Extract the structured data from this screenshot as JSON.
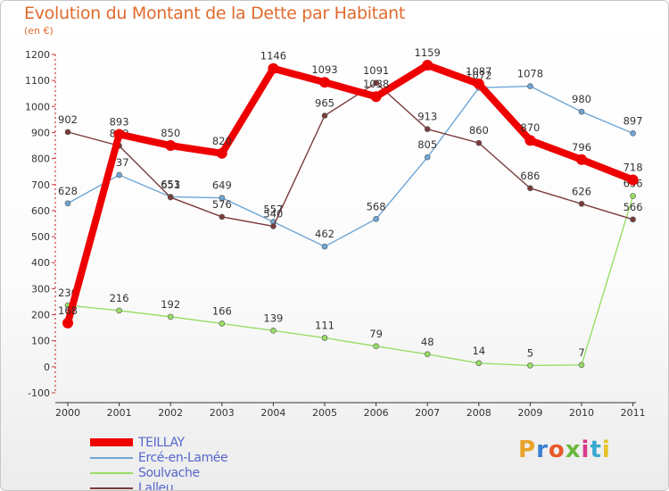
{
  "title": "Evolution du Montant de la Dette par Habitant",
  "subtitle": "(en €)",
  "logo": {
    "text": "Proxiti",
    "colors": [
      "#e8a32a",
      "#3a7fd0",
      "#e85a2a",
      "#6ab83a",
      "#d83a8a",
      "#3aa8d0",
      "#e8c22a"
    ]
  },
  "chart_data": {
    "type": "line",
    "title": "Evolution du Montant de la Dette par Habitant",
    "ylabel": "(en €)",
    "xlabel": "",
    "x": [
      "2000",
      "2001",
      "2002",
      "2003",
      "2004",
      "2005",
      "2006",
      "2007",
      "2008",
      "2009",
      "2010",
      "2011"
    ],
    "ylim": [
      -100,
      1200
    ],
    "yticks": [
      -100,
      0,
      100,
      200,
      300,
      400,
      500,
      600,
      700,
      800,
      900,
      1000,
      1100,
      1200
    ],
    "grid": false,
    "legend": "bottom-left",
    "series": [
      {
        "name": "Soulvache",
        "color": "#99dd66",
        "values": [
          236,
          216,
          192,
          166,
          139,
          111,
          79,
          48,
          14,
          5,
          7,
          656
        ]
      },
      {
        "name": "Ercé-en-Lamée",
        "color": "#6fa6d6",
        "values": [
          628,
          737,
          653,
          649,
          557,
          462,
          568,
          805,
          1072,
          1078,
          980,
          897
        ]
      },
      {
        "name": "Lalleu",
        "color": "#7a3a3a",
        "values": [
          902,
          849,
          651,
          576,
          540,
          965,
          1091,
          913,
          860,
          686,
          626,
          566
        ]
      },
      {
        "name": "TEILLAY",
        "color": "#ee0000",
        "values": [
          168,
          893,
          850,
          820,
          1146,
          1093,
          1038,
          1159,
          1087,
          870,
          796,
          718
        ]
      }
    ]
  },
  "legend_order": [
    "TEILLAY",
    "Ercé-en-Lamée",
    "Soulvache",
    "Lalleu"
  ]
}
